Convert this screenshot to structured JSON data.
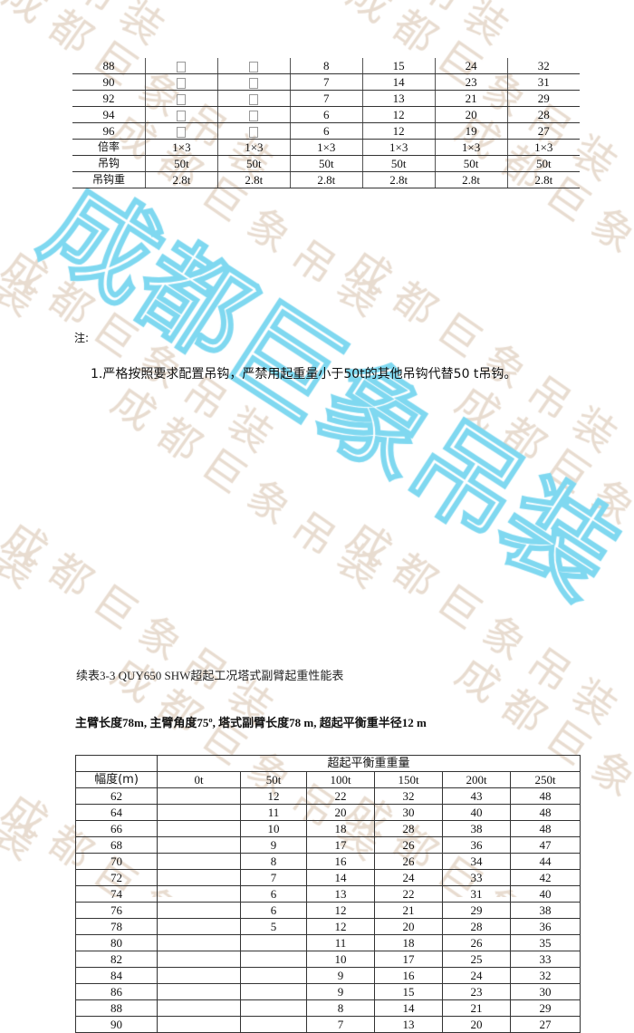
{
  "watermark": {
    "small": "成都巨象吊装",
    "large": "成都巨象吊装",
    "color_small": "#e8dcd0",
    "color_large": "#7fd8f0"
  },
  "top_table": {
    "rows": [
      {
        "r": "88",
        "c": [
          "",
          "",
          "8",
          "15",
          "24",
          "32"
        ]
      },
      {
        "r": "90",
        "c": [
          "",
          "",
          "7",
          "14",
          "23",
          "31"
        ]
      },
      {
        "r": "92",
        "c": [
          "",
          "",
          "7",
          "13",
          "21",
          "29"
        ]
      },
      {
        "r": "94",
        "c": [
          "",
          "",
          "6",
          "12",
          "20",
          "28"
        ]
      },
      {
        "r": "96",
        "c": [
          "",
          "",
          "6",
          "12",
          "19",
          "27"
        ]
      }
    ],
    "footer": [
      {
        "r": "倍率",
        "c": [
          "1×3",
          "1×3",
          "1×3",
          "1×3",
          "1×3",
          "1×3"
        ]
      },
      {
        "r": "吊钩",
        "c": [
          "50t",
          "50t",
          "50t",
          "50t",
          "50t",
          "50t"
        ]
      },
      {
        "r": "吊钩重",
        "c": [
          "2.8t",
          "2.8t",
          "2.8t",
          "2.8t",
          "2.8t",
          "2.8t"
        ]
      }
    ]
  },
  "note": {
    "label": "注:",
    "item": "1.严格按照要求配置吊钩，严禁用起重量小于50t的其他吊钩代替50  t吊钩。"
  },
  "caption": "续表3-3 QUY650 SHW超起工况塔式副臂起重性能表",
  "subtitle": "主臂长度78m, 主臂角度75º, 塔式副臂长度78 m, 超起平衡重半径12 m",
  "bottom_table": {
    "group_header": "超起平衡重重量",
    "radius_header": "幅度(m)",
    "columns": [
      "0t",
      "50t",
      "100t",
      "150t",
      "200t",
      "250t"
    ],
    "rows": [
      {
        "r": "62",
        "c": [
          "",
          "12",
          "22",
          "32",
          "43",
          "48"
        ]
      },
      {
        "r": "64",
        "c": [
          "",
          "11",
          "20",
          "30",
          "40",
          "48"
        ]
      },
      {
        "r": "66",
        "c": [
          "",
          "10",
          "18",
          "28",
          "38",
          "48"
        ]
      },
      {
        "r": "68",
        "c": [
          "",
          "9",
          "17",
          "26",
          "36",
          "47"
        ]
      },
      {
        "r": "70",
        "c": [
          "",
          "8",
          "16",
          "26",
          "34",
          "44"
        ]
      },
      {
        "r": "72",
        "c": [
          "",
          "7",
          "14",
          "24",
          "33",
          "42"
        ]
      },
      {
        "r": "74",
        "c": [
          "",
          "6",
          "13",
          "22",
          "31",
          "40"
        ]
      },
      {
        "r": "76",
        "c": [
          "",
          "6",
          "12",
          "21",
          "29",
          "38"
        ]
      },
      {
        "r": "78",
        "c": [
          "",
          "5",
          "12",
          "20",
          "28",
          "36"
        ]
      },
      {
        "r": "80",
        "c": [
          "",
          "",
          "11",
          "18",
          "26",
          "35"
        ]
      },
      {
        "r": "82",
        "c": [
          "",
          "",
          "10",
          "17",
          "25",
          "33"
        ]
      },
      {
        "r": "84",
        "c": [
          "",
          "",
          "9",
          "16",
          "24",
          "32"
        ]
      },
      {
        "r": "86",
        "c": [
          "",
          "",
          "9",
          "15",
          "23",
          "30"
        ]
      },
      {
        "r": "88",
        "c": [
          "",
          "",
          "8",
          "14",
          "21",
          "29"
        ]
      },
      {
        "r": "90",
        "c": [
          "",
          "",
          "7",
          "13",
          "20",
          "27"
        ]
      }
    ]
  }
}
